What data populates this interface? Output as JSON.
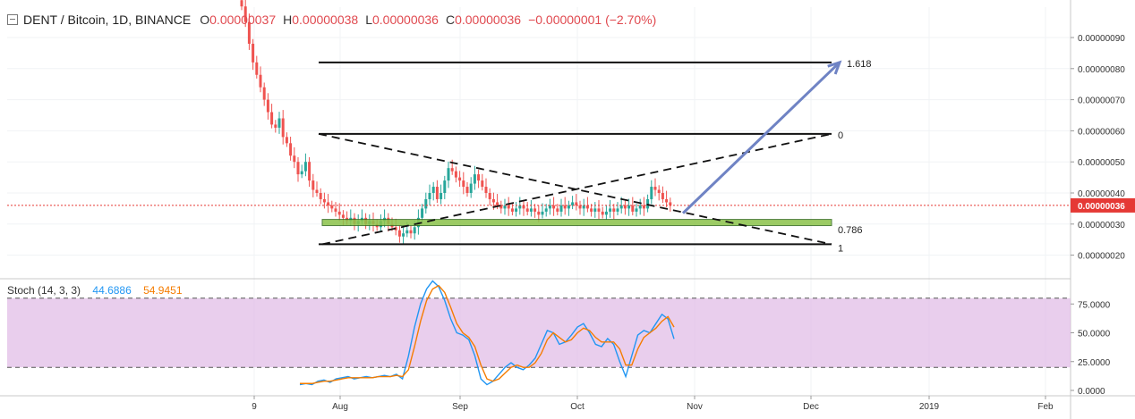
{
  "header": {
    "symbol": "DENT / Bitcoin, 1D, BINANCE",
    "open_label": "O",
    "open": "0.00000037",
    "high_label": "H",
    "high": "0.00000038",
    "low_label": "L",
    "low": "0.00000036",
    "close_label": "C",
    "close": "0.00000036",
    "change": "−0.00000001 (−2.70%)"
  },
  "stoch": {
    "name": "Stoch (14, 3, 3)",
    "k": "44.6886",
    "d": "54.9451"
  },
  "last_price": "0.00000036",
  "colors": {
    "up": "#26a69a",
    "down": "#ef5350",
    "k_line": "#2196f3",
    "d_line": "#f57c00",
    "band_fill": "#e1bee7",
    "zone": "#8bc34a",
    "arrow": "#6f83c4",
    "price_line": "#e53935"
  },
  "fib_labels": [
    "1.618",
    "0",
    "0.786",
    "1"
  ],
  "chart_data": [
    {
      "type": "candlestick",
      "title": "",
      "x_tick_labels": [
        "9",
        "Aug",
        "Sep",
        "Oct",
        "Nov",
        "Dec",
        "2019",
        "Feb"
      ],
      "y_tick_labels": [
        "0.00000090",
        "0.00000080",
        "0.00000070",
        "0.00000060",
        "0.00000050",
        "0.00000040",
        "0.00000030",
        "0.00000020"
      ],
      "ylim": [
        1.7e-07,
        1e-06
      ],
      "close_series": [
        1.0,
        0.95,
        0.88,
        0.82,
        0.78,
        0.74,
        0.7,
        0.66,
        0.62,
        0.61,
        0.64,
        0.58,
        0.56,
        0.52,
        0.5,
        0.46,
        0.47,
        0.5,
        0.44,
        0.41,
        0.4,
        0.38,
        0.37,
        0.36,
        0.35,
        0.34,
        0.33,
        0.32,
        0.31,
        0.32,
        0.3,
        0.31,
        0.32,
        0.3,
        0.31,
        0.3,
        0.29,
        0.31,
        0.32,
        0.3,
        0.29,
        0.28,
        0.26,
        0.27,
        0.28,
        0.27,
        0.29,
        0.32,
        0.35,
        0.38,
        0.4,
        0.42,
        0.38,
        0.4,
        0.44,
        0.48,
        0.47,
        0.45,
        0.44,
        0.42,
        0.4,
        0.43,
        0.46,
        0.44,
        0.42,
        0.4,
        0.38,
        0.37,
        0.36,
        0.35,
        0.36,
        0.35,
        0.34,
        0.35,
        0.36,
        0.35,
        0.34,
        0.35,
        0.34,
        0.33,
        0.34,
        0.35,
        0.36,
        0.35,
        0.34,
        0.36,
        0.35,
        0.36,
        0.37,
        0.36,
        0.35,
        0.36,
        0.35,
        0.34,
        0.35,
        0.34,
        0.33,
        0.34,
        0.35,
        0.34,
        0.35,
        0.36,
        0.35,
        0.36,
        0.34,
        0.35,
        0.36,
        0.35,
        0.38,
        0.42,
        0.41,
        0.4,
        0.38,
        0.37,
        0.36
      ],
      "fib_levels": [
        {
          "label": "1.618",
          "price": 8.2e-07
        },
        {
          "label": "0",
          "price": 5.9e-07
        },
        {
          "label": "0.786",
          "price": 3.05e-07
        },
        {
          "label": "1",
          "price": 2.35e-07
        }
      ],
      "last_price": 3.6e-07
    },
    {
      "type": "line",
      "title": "Stoch (14, 3, 3)",
      "ylim": [
        0,
        100
      ],
      "y_tick_labels": [
        "75.0000",
        "50.0000",
        "25.0000",
        "0.0000"
      ],
      "bands": [
        80,
        20
      ],
      "series": [
        {
          "name": "%K",
          "values": [
            5,
            6,
            5,
            8,
            9,
            7,
            10,
            11,
            12,
            10,
            11,
            12,
            11,
            12,
            13,
            12,
            14,
            10,
            30,
            55,
            75,
            88,
            95,
            90,
            78,
            62,
            50,
            48,
            44,
            30,
            10,
            5,
            8,
            14,
            20,
            24,
            20,
            18,
            22,
            28,
            40,
            52,
            50,
            40,
            42,
            48,
            55,
            58,
            50,
            40,
            38,
            45,
            40,
            25,
            12,
            30,
            48,
            52,
            50,
            58,
            66,
            62,
            44.6886
          ]
        },
        {
          "name": "%D",
          "values": [
            6,
            6,
            6,
            7,
            8,
            8,
            9,
            10,
            11,
            11,
            11,
            11,
            11,
            12,
            12,
            12,
            13,
            12,
            18,
            38,
            60,
            78,
            88,
            91,
            85,
            72,
            58,
            50,
            46,
            38,
            22,
            10,
            8,
            10,
            15,
            20,
            22,
            20,
            20,
            24,
            32,
            44,
            50,
            46,
            42,
            44,
            50,
            54,
            52,
            46,
            42,
            42,
            42,
            36,
            22,
            22,
            36,
            46,
            50,
            54,
            60,
            64,
            54.9451
          ]
        }
      ]
    }
  ]
}
